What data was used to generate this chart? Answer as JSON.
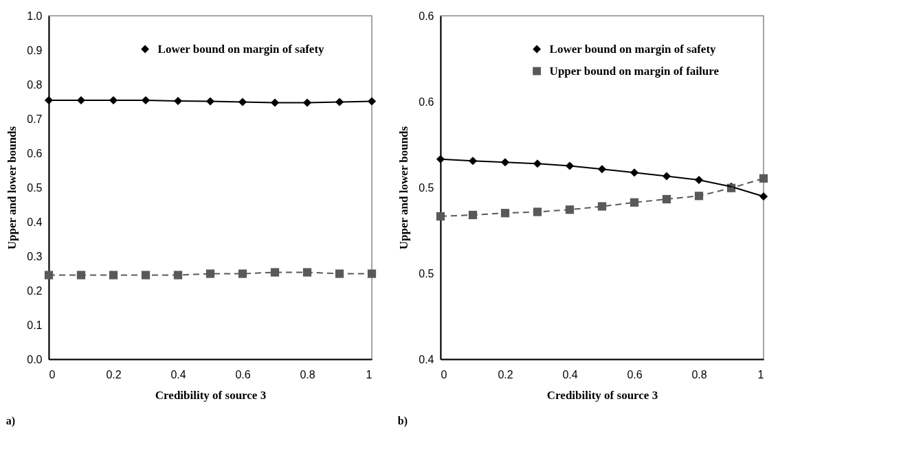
{
  "chart_data": [
    {
      "type": "line",
      "xlabel": "Credibility of source 3",
      "ylabel": "Upper and lower bounds",
      "annotations": [
        "a)"
      ],
      "legend": "top",
      "x": [
        0,
        0.1,
        0.2,
        0.3,
        0.4,
        0.5,
        0.6,
        0.7,
        0.8,
        0.9,
        1
      ],
      "xlim": [
        0,
        1
      ],
      "xticks": [
        0,
        0.2,
        0.4,
        0.6,
        0.8,
        1
      ],
      "ylim": [
        0,
        1
      ],
      "yticks": [
        {
          "value": 0,
          "label": "0.0"
        },
        {
          "value": 0.1,
          "label": "0.1"
        },
        {
          "value": 0.2,
          "label": "0.2"
        },
        {
          "value": 0.3,
          "label": "0.3"
        },
        {
          "value": 0.4,
          "label": "0.4"
        },
        {
          "value": 0.5,
          "label": "0.5"
        },
        {
          "value": 0.6,
          "label": "0.6"
        },
        {
          "value": 0.7,
          "label": "0.7"
        },
        {
          "value": 0.8,
          "label": "0.8"
        },
        {
          "value": 0.9,
          "label": "0.9"
        },
        {
          "value": 1,
          "label": "1.0"
        }
      ],
      "series": [
        {
          "name": "Lower bound on margin of safety",
          "color": "#000000",
          "marker": "diamond",
          "line_style": "solid",
          "values": [
            0.754,
            0.754,
            0.754,
            0.754,
            0.752,
            0.751,
            0.749,
            0.747,
            0.747,
            0.749,
            0.751
          ]
        },
        {
          "color": "#595959",
          "marker": "square",
          "line_style": "dashed",
          "values": [
            0.245,
            0.245,
            0.245,
            0.245,
            0.245,
            0.249,
            0.249,
            0.253,
            0.253,
            0.249,
            0.249
          ]
        }
      ]
    },
    {
      "type": "line",
      "xlabel": "Credibility of source 3",
      "ylabel": "Upper and lower bounds",
      "annotations": [
        "b)"
      ],
      "legend": "top",
      "x": [
        0,
        0.1,
        0.2,
        0.3,
        0.4,
        0.5,
        0.6,
        0.7,
        0.8,
        0.9,
        1
      ],
      "xlim": [
        0,
        1
      ],
      "xticks": [
        0,
        0.2,
        0.4,
        0.6,
        0.8,
        1
      ],
      "ylim": [
        0.4,
        0.6
      ],
      "yticks": [
        0.4,
        {
          "value": 0.45,
          "label": "0.5"
        },
        0.5,
        {
          "value": 0.55,
          "label": "0.6"
        },
        0.6
      ],
      "series": [
        {
          "name": "Lower bound on margin of safety",
          "color": "#000000",
          "marker": "diamond",
          "line_style": "solid",
          "values": [
            0.5165,
            0.5155,
            0.5147,
            0.5139,
            0.5126,
            0.5107,
            0.5087,
            0.5066,
            0.5044,
            0.5005,
            0.4948
          ]
        },
        {
          "name": "Upper bound on margin of failure",
          "color": "#595959",
          "marker": "square",
          "line_style": "dashed",
          "values": [
            0.4832,
            0.484,
            0.4851,
            0.4858,
            0.4871,
            0.489,
            0.4913,
            0.4932,
            0.4951,
            0.4997,
            0.5053
          ]
        }
      ]
    }
  ]
}
